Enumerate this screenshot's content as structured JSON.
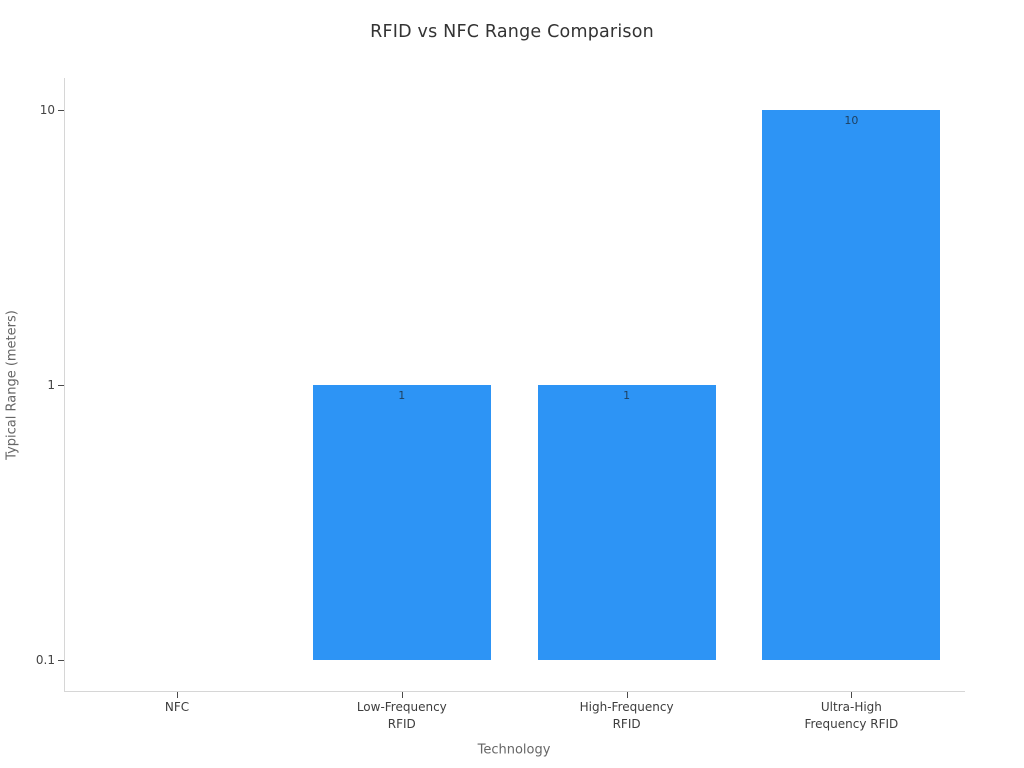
{
  "chart_data": {
    "type": "bar",
    "title": "RFID vs NFC Range Comparison",
    "xlabel": "Technology",
    "ylabel": "Typical Range (meters)",
    "yscale": "log",
    "categories": [
      "NFC",
      "Low-Frequency\nRFID",
      "High-Frequency\nRFID",
      "Ultra-High\nFrequency RFID"
    ],
    "values": [
      0.1,
      1,
      1,
      10
    ],
    "bar_labels": [
      "",
      "1",
      "1",
      "10"
    ],
    "yticks": [
      0.1,
      1,
      10
    ],
    "ytick_labels": [
      "0.1",
      "1",
      "10"
    ],
    "grid": false,
    "legend": false,
    "colors": {
      "bar": "#2d94f5",
      "bar_label_text": "#1e3f5e",
      "axis_line": "#d6d6d6",
      "tick_text": "#444444",
      "title_text": "#333333",
      "axis_title_text": "#666666",
      "background": "#ffffff"
    }
  }
}
